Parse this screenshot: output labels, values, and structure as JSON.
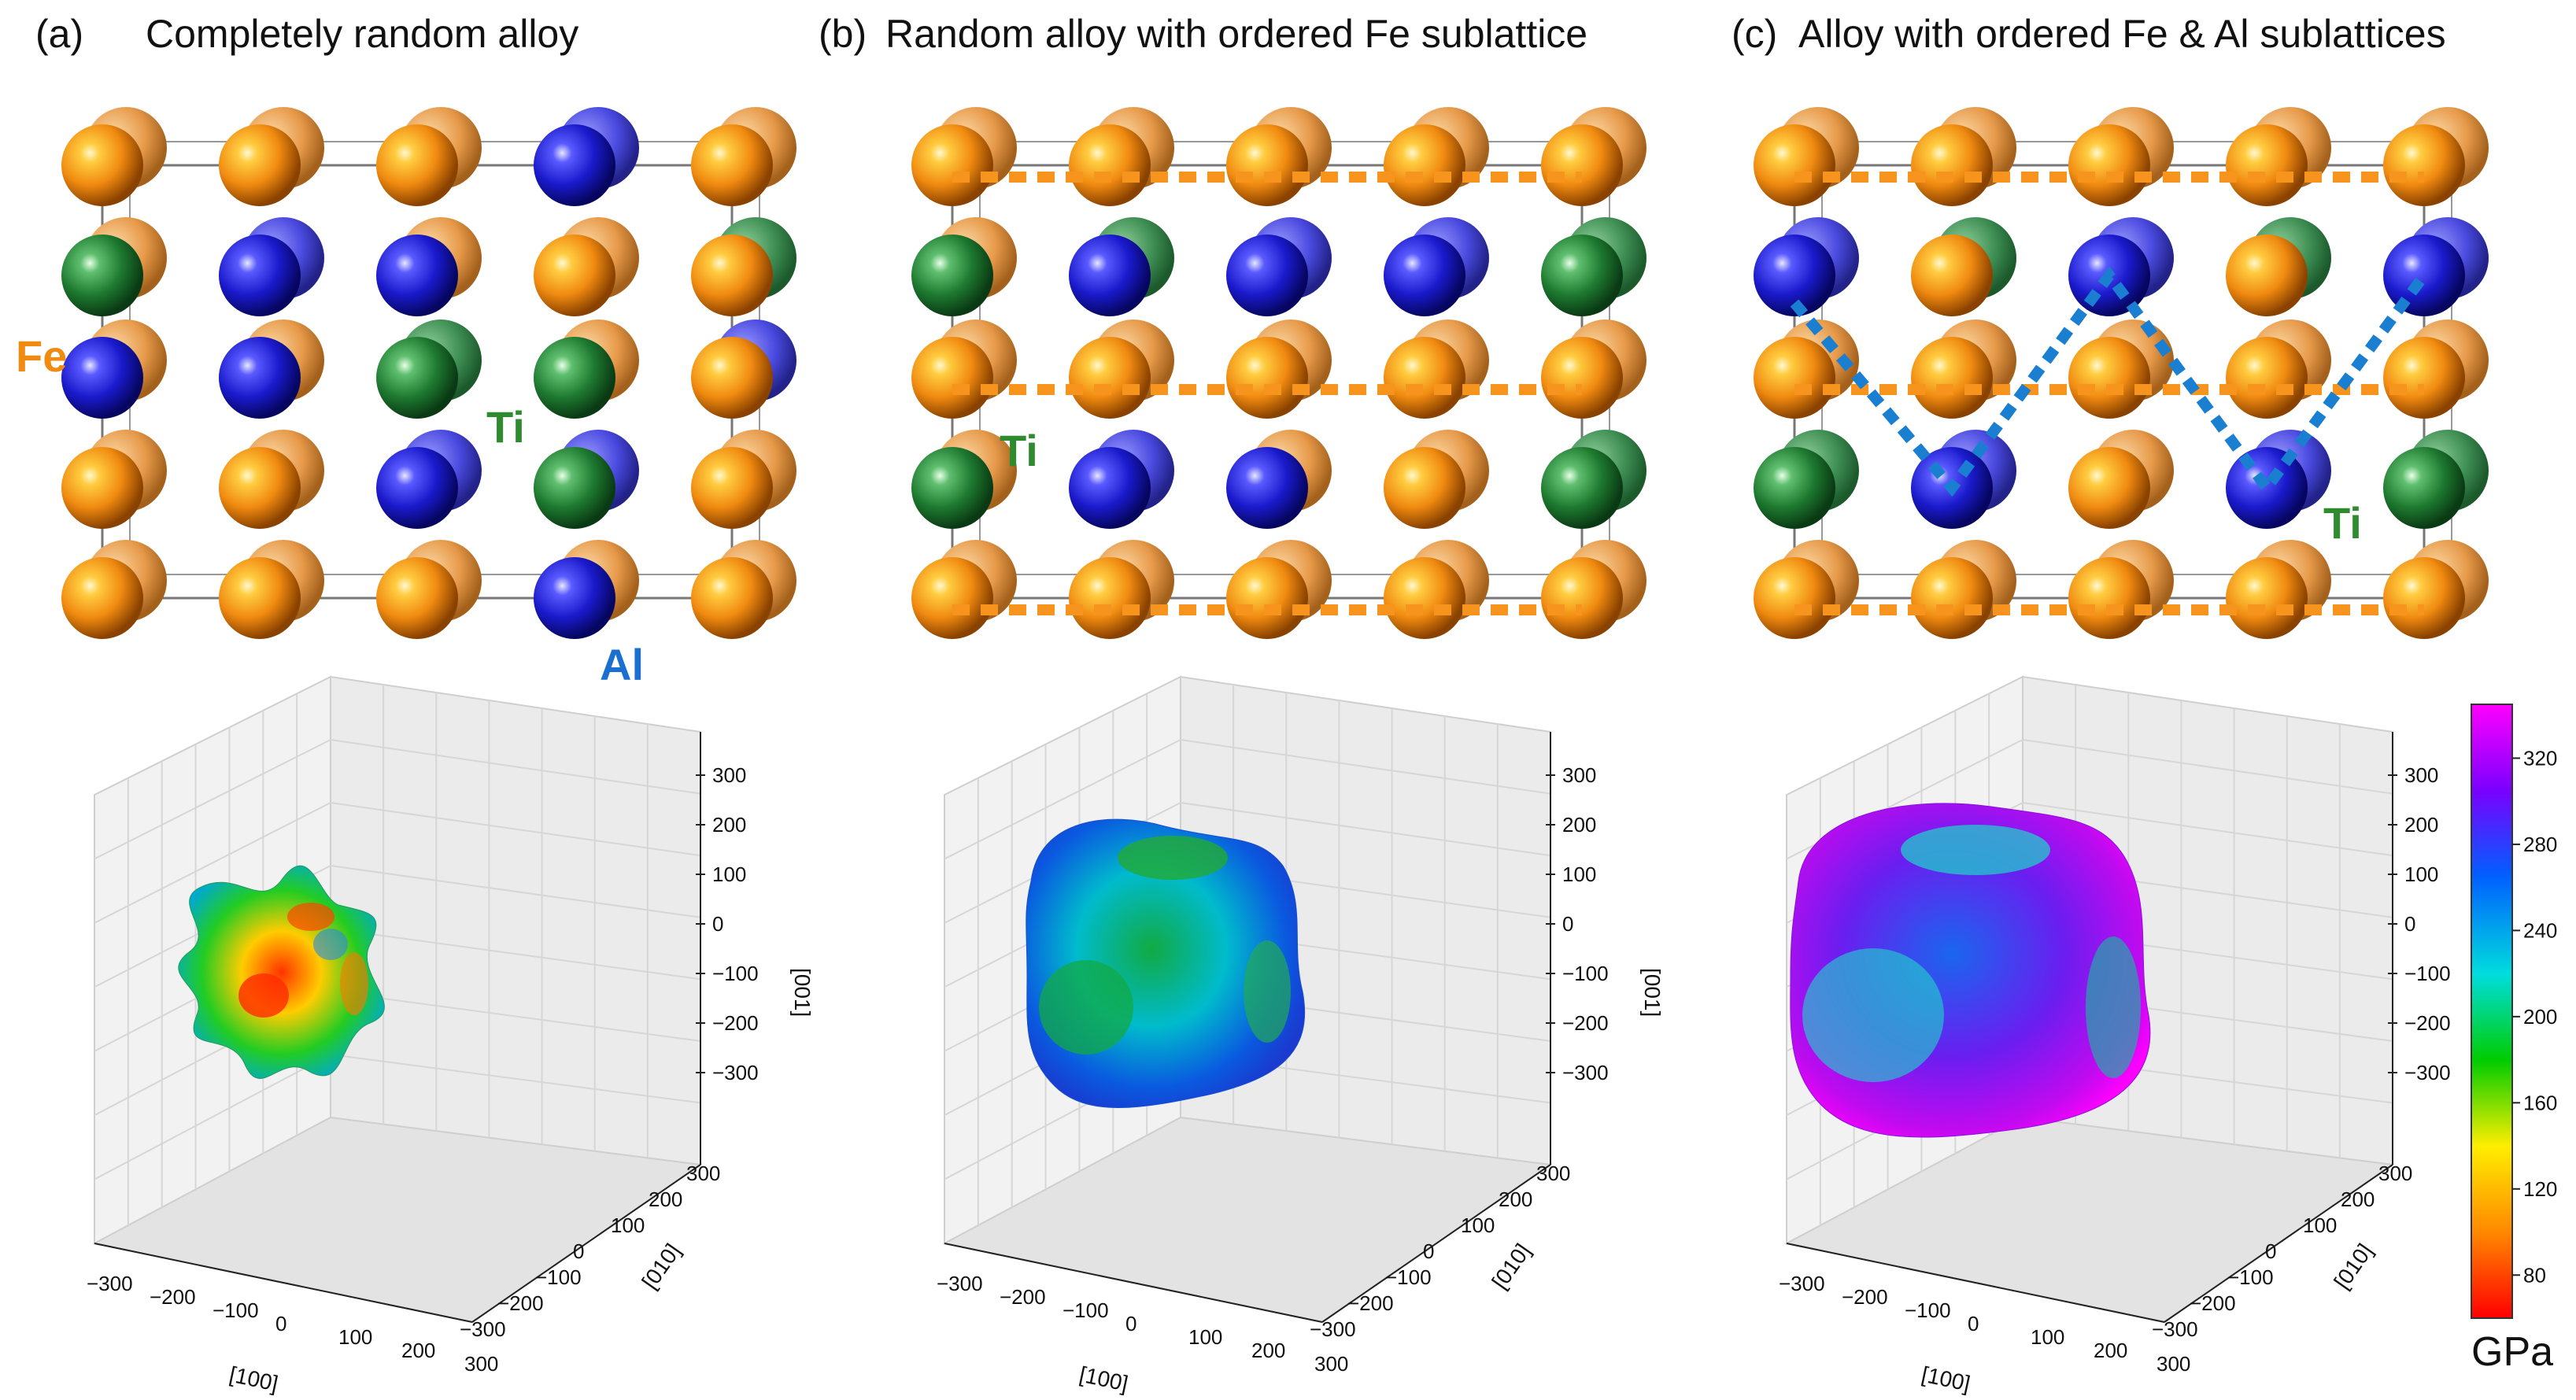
{
  "panels": [
    {
      "letter": "(a)",
      "title": "Completely random alloy",
      "element_labels": [
        "Fe",
        "Ti",
        "Al"
      ]
    },
    {
      "letter": "(b)",
      "title": "Random alloy with ordered Fe sublattice",
      "element_labels": [
        "Ti"
      ]
    },
    {
      "letter": "(c)",
      "title": "Alloy with ordered Fe & Al sublattices",
      "element_labels": [
        "Ti"
      ]
    }
  ],
  "plot3d": {
    "z_axis_label": "[001]",
    "y_axis_label": "[010]",
    "x_axis_label": "[100]",
    "z_ticks": [
      "300",
      "200",
      "100",
      "0",
      "−100",
      "−200",
      "−300"
    ],
    "y_ticks": [
      "300",
      "200",
      "100",
      "0",
      "−100",
      "−200",
      "−300"
    ],
    "x_ticks": [
      "−300",
      "−200",
      "−100",
      "0",
      "100",
      "200",
      "300"
    ]
  },
  "colorbar": {
    "unit": "GPa",
    "ticks": [
      "320",
      "280",
      "240",
      "200",
      "160",
      "120",
      "80"
    ],
    "range": [
      60,
      345
    ],
    "colors": [
      "#ff0000",
      "#ff8800",
      "#ffee00",
      "#00cc00",
      "#00dddd",
      "#0060ff",
      "#7a00ff",
      "#ff00ff"
    ]
  },
  "atom_colors": {
    "Fe": "#f08a10",
    "Ti": "#1e7a30",
    "Al": "#1a1acc",
    "Fe_label": "#f08a10",
    "Ti_label": "#2e8b2e",
    "Al_label": "#1a6fd0",
    "Fe_sublattice_line": "#f7941d",
    "Al_sublattice_line": "#1a7fd0"
  }
}
